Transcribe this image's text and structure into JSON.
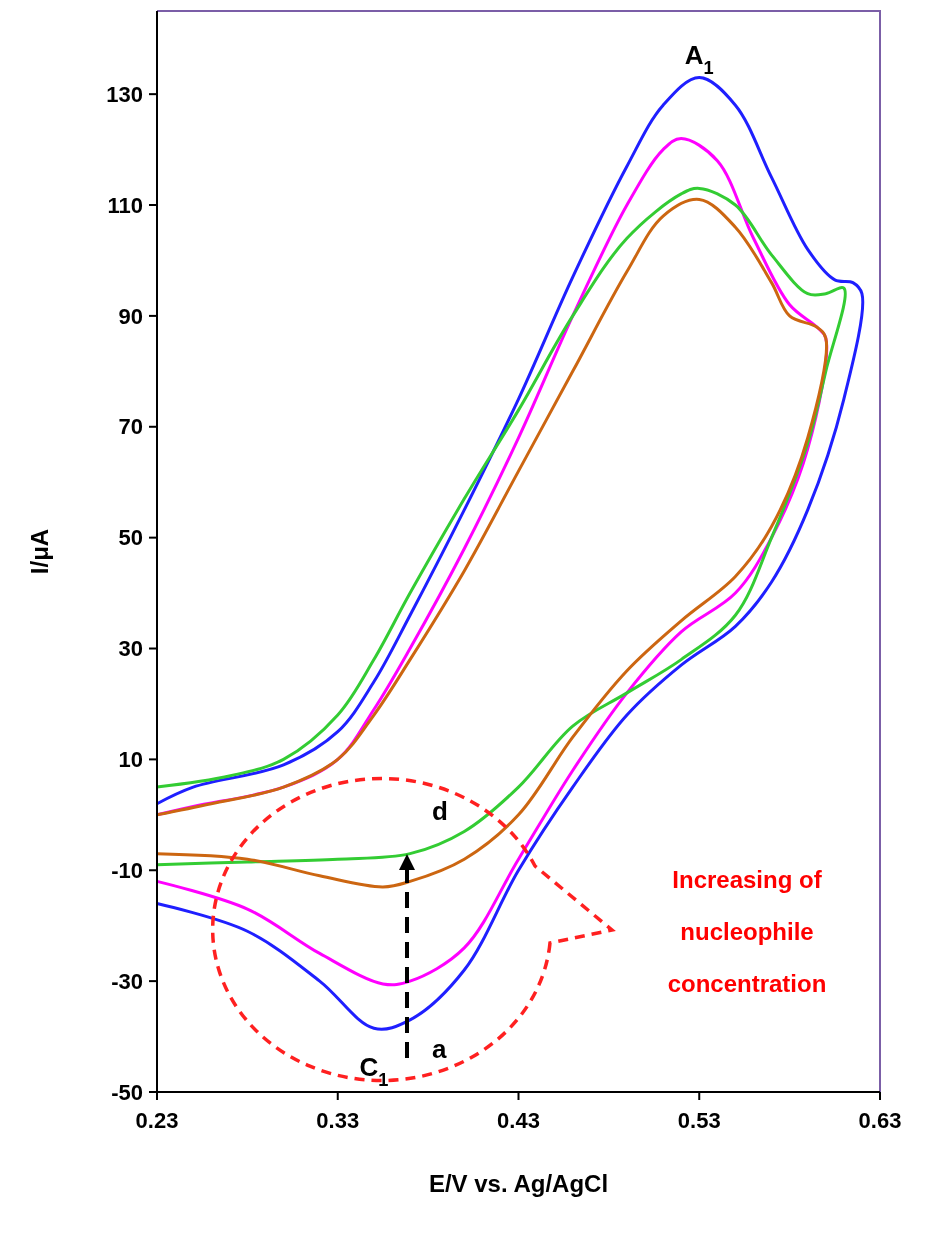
{
  "chart_data": {
    "type": "line",
    "xlabel": "E/V vs. Ag/AgCl",
    "ylabel": "I/μA",
    "xlim": [
      0.23,
      0.63
    ],
    "xticks": [
      0.23,
      0.33,
      0.43,
      0.53,
      0.63
    ],
    "ylim": [
      -50,
      145
    ],
    "yticks": [
      -50,
      -30,
      -10,
      10,
      30,
      50,
      70,
      90,
      110,
      130
    ],
    "grid": false,
    "marker": "none",
    "line_style": "solid",
    "series": [
      {
        "color": "#1f1fff",
        "x": [
          0.23,
          0.25,
          0.3,
          0.33,
          0.35,
          0.37,
          0.4,
          0.43,
          0.46,
          0.49,
          0.51,
          0.53,
          0.55,
          0.57,
          0.59,
          0.605,
          0.615,
          0.62,
          0.61,
          0.59,
          0.57,
          0.55,
          0.52,
          0.49,
          0.46,
          0.43,
          0.4,
          0.37,
          0.35,
          0.32,
          0.28,
          0.23
        ],
        "values": [
          2,
          5,
          9,
          15,
          24,
          36,
          55,
          75,
          97,
          117,
          128,
          133,
          128,
          115,
          102,
          96.5,
          96,
          94,
          75,
          55,
          42,
          34,
          27,
          18,
          5,
          -10,
          -28,
          -37,
          -38.5,
          -30,
          -21,
          -16
        ]
      },
      {
        "color": "#ff00ff",
        "x": [
          0.23,
          0.25,
          0.3,
          0.33,
          0.35,
          0.37,
          0.4,
          0.43,
          0.46,
          0.49,
          0.51,
          0.52,
          0.54,
          0.56,
          0.58,
          0.595,
          0.6,
          0.59,
          0.57,
          0.55,
          0.52,
          0.49,
          0.46,
          0.43,
          0.4,
          0.37,
          0.355,
          0.32,
          0.28,
          0.23
        ],
        "values": [
          0,
          1.5,
          5,
          10,
          19,
          30,
          48,
          68,
          90,
          110,
          120,
          122,
          118,
          104,
          92,
          88,
          86,
          66,
          50,
          40,
          33,
          22,
          8,
          -8,
          -24,
          -30,
          -30.5,
          -25,
          -17,
          -12
        ]
      },
      {
        "color": "#33cc33",
        "x": [
          0.23,
          0.27,
          0.3,
          0.33,
          0.35,
          0.37,
          0.4,
          0.43,
          0.46,
          0.49,
          0.52,
          0.53,
          0.55,
          0.57,
          0.59,
          0.6,
          0.61,
          0.6,
          0.59,
          0.57,
          0.55,
          0.52,
          0.49,
          0.46,
          0.43,
          0.4,
          0.37,
          0.33,
          0.28,
          0.23
        ],
        "values": [
          5,
          7,
          10,
          18,
          28,
          40,
          57,
          73,
          90,
          104,
          112,
          113,
          110,
          101,
          94,
          94,
          95,
          80,
          67,
          50,
          36,
          28,
          22,
          16,
          5,
          -3,
          -7,
          -8,
          -8.5,
          -9
        ]
      },
      {
        "color": "#cc6611",
        "x": [
          0.23,
          0.26,
          0.3,
          0.33,
          0.35,
          0.37,
          0.4,
          0.43,
          0.46,
          0.49,
          0.51,
          0.53,
          0.55,
          0.57,
          0.58,
          0.595,
          0.6,
          0.59,
          0.57,
          0.55,
          0.52,
          0.49,
          0.46,
          0.43,
          0.4,
          0.37,
          0.355,
          0.32,
          0.28,
          0.23
        ],
        "values": [
          0,
          2,
          5,
          10,
          18,
          28,
          44,
          62,
          80,
          98,
          108,
          111,
          106,
          96,
          90,
          88,
          86,
          68,
          52,
          43,
          35,
          26,
          14,
          0,
          -8,
          -12,
          -13,
          -11,
          -8,
          -7
        ]
      }
    ],
    "annotations": [
      {
        "text": "A$_{1}$",
        "x": 0.53,
        "y": 133
      },
      {
        "text": "C$_{1}$",
        "x": 0.35,
        "y": -38.5
      },
      "a",
      "d",
      "Increasing of nucleophile concentration"
    ]
  }
}
